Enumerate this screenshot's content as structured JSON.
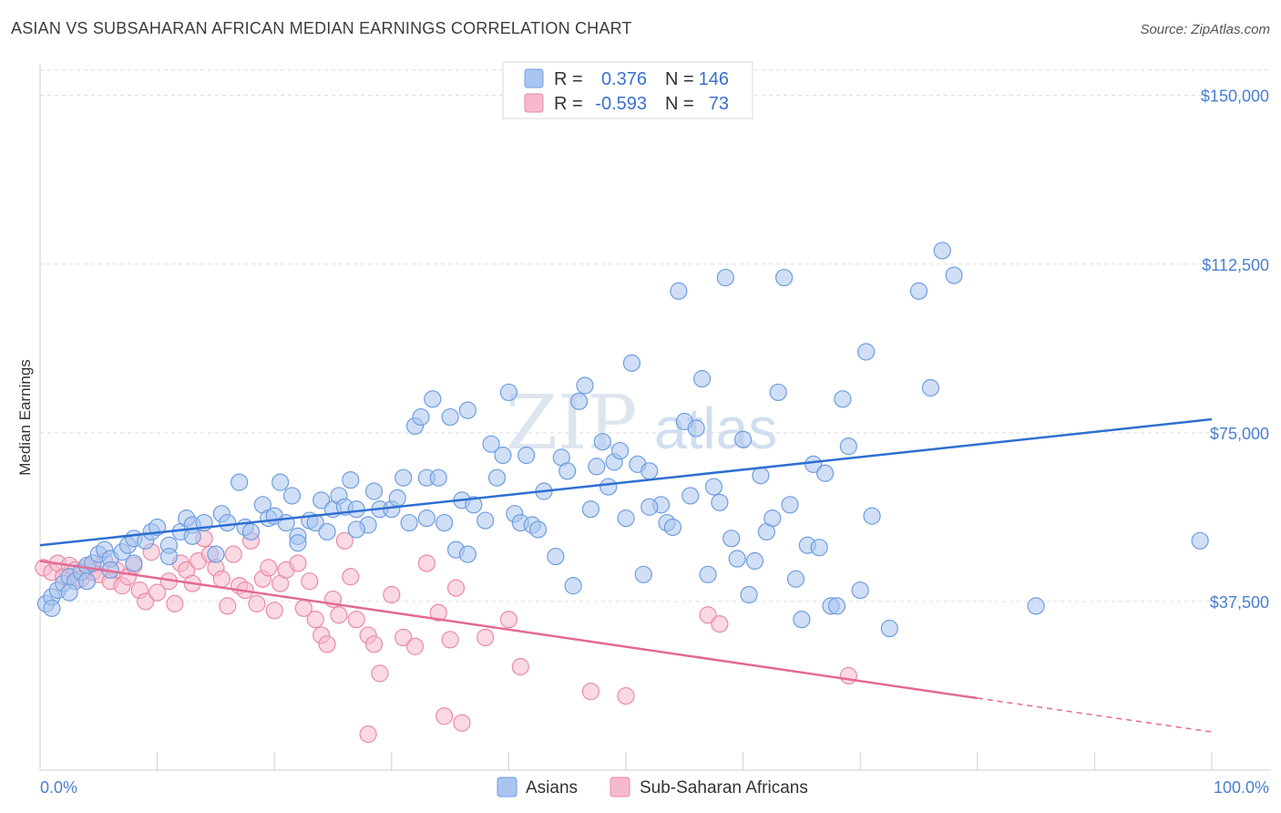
{
  "header": {
    "title": "ASIAN VS SUBSAHARAN AFRICAN MEDIAN EARNINGS CORRELATION CHART",
    "source": "Source: ZipAtlas.com"
  },
  "watermark": {
    "part1": "ZIP",
    "part2": "atlas"
  },
  "colors": {
    "asian_fill": "#a9c5ef",
    "asian_stroke": "#6e9ee0",
    "asian_line": "#2f6fd1",
    "african_fill": "#f6b9cc",
    "african_stroke": "#ea8aa8",
    "african_line": "#e26a94",
    "grid": "#dcdcdc",
    "tick_label": "#4a7fd0"
  },
  "legend": {
    "rows": [
      {
        "r_label": "R =",
        "r_value": "0.376",
        "n_label": "N =",
        "n_value": "146"
      },
      {
        "r_label": "R =",
        "r_value": "-0.593",
        "n_label": "N =",
        "n_value": "73"
      }
    ]
  },
  "bottom_legend": {
    "items": [
      "Asians",
      "Sub-Saharan Africans"
    ]
  },
  "chart_data": {
    "type": "scatter",
    "title": "ASIAN VS SUBSAHARAN AFRICAN MEDIAN EARNINGS CORRELATION CHART",
    "xlabel": "",
    "ylabel": "Median Earnings",
    "xlim": [
      0,
      100
    ],
    "ylim": [
      0,
      155000
    ],
    "x_tick_labels": [
      "0.0%",
      "100.0%"
    ],
    "y_ticks": [
      37500,
      75000,
      112500,
      150000
    ],
    "y_tick_labels": [
      "$37,500",
      "$75,000",
      "$112,500",
      "$150,000"
    ],
    "grid": true,
    "legend_position": "top-center",
    "series": [
      {
        "name": "Asians",
        "r": 0.376,
        "n": 146,
        "trend": {
          "x": [
            0,
            100
          ],
          "y": [
            50000,
            78000
          ]
        },
        "points": [
          [
            0.5,
            37000
          ],
          [
            1,
            38500
          ],
          [
            1.5,
            40000
          ],
          [
            2,
            41500
          ],
          [
            2.5,
            43000
          ],
          [
            3,
            42000
          ],
          [
            3.5,
            44000
          ],
          [
            4,
            45500
          ],
          [
            4.5,
            46000
          ],
          [
            5,
            48000
          ],
          [
            5.5,
            49000
          ],
          [
            6,
            47000
          ],
          [
            7,
            48500
          ],
          [
            7.5,
            50000
          ],
          [
            8,
            51500
          ],
          [
            9,
            51000
          ],
          [
            9.5,
            53000
          ],
          [
            10,
            54000
          ],
          [
            11,
            50000
          ],
          [
            12,
            53000
          ],
          [
            12.5,
            56000
          ],
          [
            13,
            54500
          ],
          [
            14,
            55000
          ],
          [
            15,
            48000
          ],
          [
            15.5,
            57000
          ],
          [
            16,
            55000
          ],
          [
            17,
            64000
          ],
          [
            17.5,
            54000
          ],
          [
            18,
            53000
          ],
          [
            19,
            59000
          ],
          [
            19.5,
            56000
          ],
          [
            20,
            56500
          ],
          [
            20.5,
            64000
          ],
          [
            21,
            55000
          ],
          [
            21.5,
            61000
          ],
          [
            22,
            52000
          ],
          [
            23,
            55500
          ],
          [
            23.5,
            55000
          ],
          [
            24,
            60000
          ],
          [
            24.5,
            53000
          ],
          [
            25,
            58000
          ],
          [
            25.5,
            61000
          ],
          [
            26,
            58500
          ],
          [
            26.5,
            64500
          ],
          [
            27,
            58000
          ],
          [
            28,
            54500
          ],
          [
            28.5,
            62000
          ],
          [
            29,
            58000
          ],
          [
            30,
            58000
          ],
          [
            30.5,
            60500
          ],
          [
            31,
            65000
          ],
          [
            31.5,
            55000
          ],
          [
            32,
            76500
          ],
          [
            32.5,
            78500
          ],
          [
            33,
            65000
          ],
          [
            33.5,
            82500
          ],
          [
            34,
            65000
          ],
          [
            34.5,
            55000
          ],
          [
            35,
            78500
          ],
          [
            35.5,
            49000
          ],
          [
            36,
            60000
          ],
          [
            36.5,
            80000
          ],
          [
            37,
            59000
          ],
          [
            38,
            55500
          ],
          [
            38.5,
            72500
          ],
          [
            39,
            65000
          ],
          [
            39.5,
            70000
          ],
          [
            40,
            84000
          ],
          [
            40.5,
            57000
          ],
          [
            41,
            55000
          ],
          [
            41.5,
            70000
          ],
          [
            42,
            54500
          ],
          [
            42.5,
            53500
          ],
          [
            43,
            62000
          ],
          [
            44,
            47500
          ],
          [
            44.5,
            69500
          ],
          [
            45,
            66500
          ],
          [
            45.5,
            41000
          ],
          [
            46,
            82000
          ],
          [
            46.5,
            85500
          ],
          [
            47,
            58000
          ],
          [
            47.5,
            67500
          ],
          [
            48,
            73000
          ],
          [
            48.5,
            63000
          ],
          [
            49,
            68500
          ],
          [
            49.5,
            71000
          ],
          [
            50,
            56000
          ],
          [
            50.5,
            90500
          ],
          [
            51,
            68000
          ],
          [
            51.5,
            43500
          ],
          [
            52,
            66500
          ],
          [
            53,
            59000
          ],
          [
            53.5,
            55000
          ],
          [
            54,
            54000
          ],
          [
            54.5,
            106500
          ],
          [
            55,
            77500
          ],
          [
            55.5,
            61000
          ],
          [
            56,
            76000
          ],
          [
            56.5,
            87000
          ],
          [
            57,
            43500
          ],
          [
            57.5,
            63000
          ],
          [
            58,
            59500
          ],
          [
            58.5,
            109500
          ],
          [
            59,
            51500
          ],
          [
            59.5,
            47000
          ],
          [
            60,
            73500
          ],
          [
            60.5,
            39000
          ],
          [
            61,
            46500
          ],
          [
            61.5,
            65500
          ],
          [
            62,
            53000
          ],
          [
            62.5,
            56000
          ],
          [
            63,
            84000
          ],
          [
            63.5,
            109500
          ],
          [
            64,
            59000
          ],
          [
            64.5,
            42500
          ],
          [
            65,
            33500
          ],
          [
            65.5,
            50000
          ],
          [
            66,
            68000
          ],
          [
            66.5,
            49500
          ],
          [
            67,
            66000
          ],
          [
            67.5,
            36500
          ],
          [
            68,
            36500
          ],
          [
            68.5,
            82500
          ],
          [
            69,
            72000
          ],
          [
            70,
            40000
          ],
          [
            70.5,
            93000
          ],
          [
            71,
            56500
          ],
          [
            72.5,
            31500
          ],
          [
            75,
            106500
          ],
          [
            76,
            85000
          ],
          [
            77,
            115500
          ],
          [
            78,
            110000
          ],
          [
            85,
            36500
          ],
          [
            99,
            51000
          ],
          [
            1,
            36000
          ],
          [
            2.5,
            39500
          ],
          [
            4,
            42000
          ],
          [
            6,
            44500
          ],
          [
            8,
            46000
          ],
          [
            11,
            47500
          ],
          [
            13,
            52000
          ],
          [
            22,
            50500
          ],
          [
            27,
            53500
          ],
          [
            33,
            56000
          ],
          [
            36.5,
            48000
          ],
          [
            52,
            58500
          ]
        ]
      },
      {
        "name": "Sub-Saharan Africans",
        "r": -0.593,
        "n": 73,
        "trend": {
          "x": [
            0,
            80
          ],
          "y": [
            46500,
            16000
          ]
        },
        "trend_dashed": {
          "x": [
            80,
            100
          ],
          "y": [
            16000,
            8500
          ]
        },
        "points": [
          [
            0.3,
            45000
          ],
          [
            1,
            44000
          ],
          [
            1.5,
            46000
          ],
          [
            2,
            43000
          ],
          [
            2.5,
            45500
          ],
          [
            3,
            44500
          ],
          [
            3.5,
            42500
          ],
          [
            4,
            45000
          ],
          [
            4.5,
            44000
          ],
          [
            5,
            43500
          ],
          [
            5.5,
            46500
          ],
          [
            6,
            42000
          ],
          [
            6.5,
            44500
          ],
          [
            7,
            41000
          ],
          [
            7.5,
            43000
          ],
          [
            8,
            45500
          ],
          [
            8.5,
            40000
          ],
          [
            9,
            37500
          ],
          [
            9.5,
            48500
          ],
          [
            10,
            39500
          ],
          [
            11,
            42000
          ],
          [
            11.5,
            37000
          ],
          [
            12,
            46000
          ],
          [
            12.5,
            44500
          ],
          [
            13,
            41500
          ],
          [
            13.5,
            46500
          ],
          [
            14,
            51500
          ],
          [
            14.5,
            48000
          ],
          [
            15,
            45000
          ],
          [
            15.5,
            42500
          ],
          [
            16,
            36500
          ],
          [
            16.5,
            48000
          ],
          [
            17,
            41000
          ],
          [
            17.5,
            40000
          ],
          [
            18,
            51000
          ],
          [
            18.5,
            37000
          ],
          [
            19,
            42500
          ],
          [
            19.5,
            45000
          ],
          [
            20,
            35500
          ],
          [
            20.5,
            41500
          ],
          [
            21,
            44500
          ],
          [
            22,
            46000
          ],
          [
            22.5,
            36000
          ],
          [
            23,
            42000
          ],
          [
            23.5,
            33500
          ],
          [
            24,
            30000
          ],
          [
            24.5,
            28000
          ],
          [
            25,
            38000
          ],
          [
            25.5,
            34500
          ],
          [
            26,
            51000
          ],
          [
            26.5,
            43000
          ],
          [
            27,
            33500
          ],
          [
            28,
            30000
          ],
          [
            28.5,
            28000
          ],
          [
            29,
            21500
          ],
          [
            30,
            39000
          ],
          [
            31,
            29500
          ],
          [
            32,
            27500
          ],
          [
            33,
            46000
          ],
          [
            34,
            35000
          ],
          [
            34.5,
            12000
          ],
          [
            35,
            29000
          ],
          [
            35.5,
            40500
          ],
          [
            36,
            10500
          ],
          [
            38,
            29500
          ],
          [
            40,
            33500
          ],
          [
            41,
            23000
          ],
          [
            47,
            17500
          ],
          [
            50,
            16500
          ],
          [
            57,
            34500
          ],
          [
            58,
            32500
          ],
          [
            69,
            21000
          ],
          [
            28,
            8000
          ]
        ]
      }
    ]
  }
}
